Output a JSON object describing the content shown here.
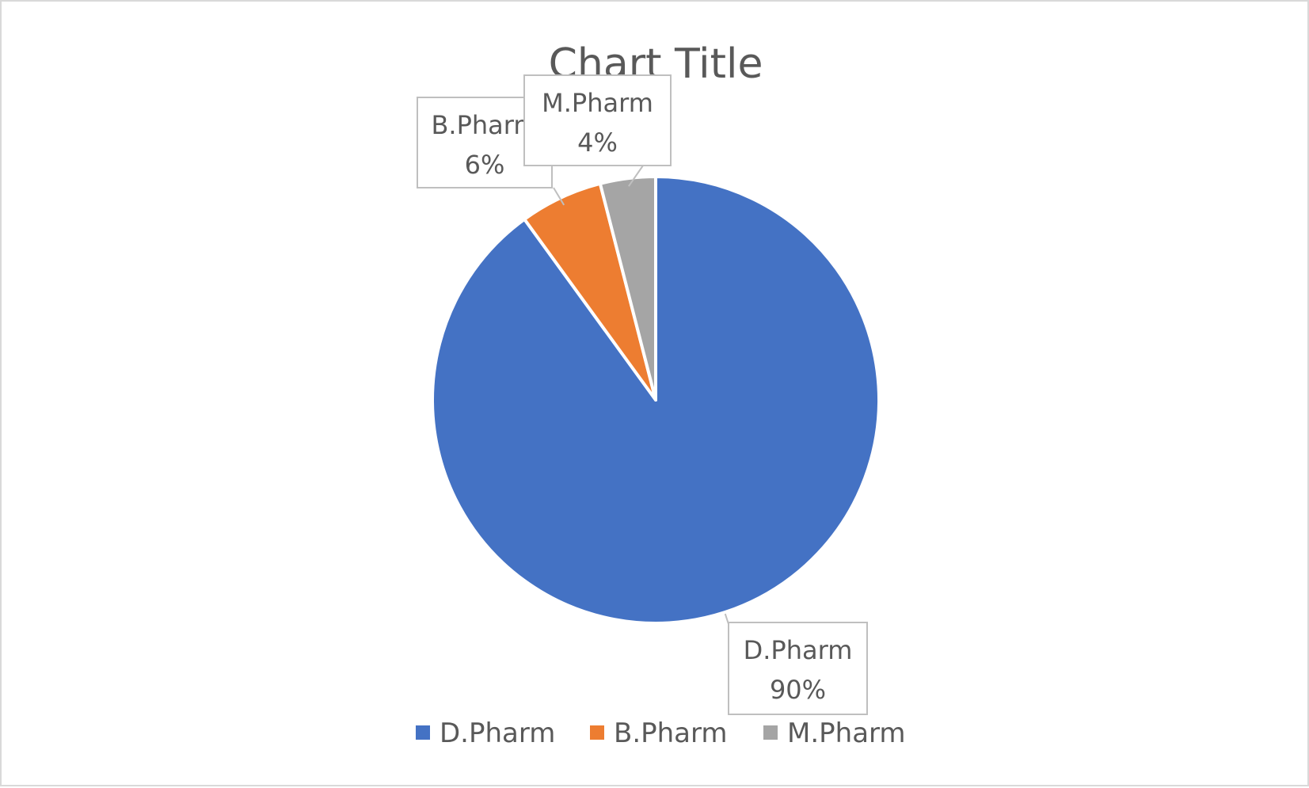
{
  "chart_data": {
    "type": "pie",
    "title": "Chart Title",
    "categories": [
      "D.Pharm",
      "B.Pharm",
      "M.Pharm"
    ],
    "values": [
      90,
      6,
      4
    ],
    "value_labels": [
      "90%",
      "6%",
      "4%"
    ],
    "colors": [
      "#4472c4",
      "#ed7d31",
      "#a5a5a5"
    ],
    "start_angle": "12 o'clock, clockwise",
    "legend_position": "bottom",
    "data_labels": "callout boxes with category name and percentage"
  }
}
